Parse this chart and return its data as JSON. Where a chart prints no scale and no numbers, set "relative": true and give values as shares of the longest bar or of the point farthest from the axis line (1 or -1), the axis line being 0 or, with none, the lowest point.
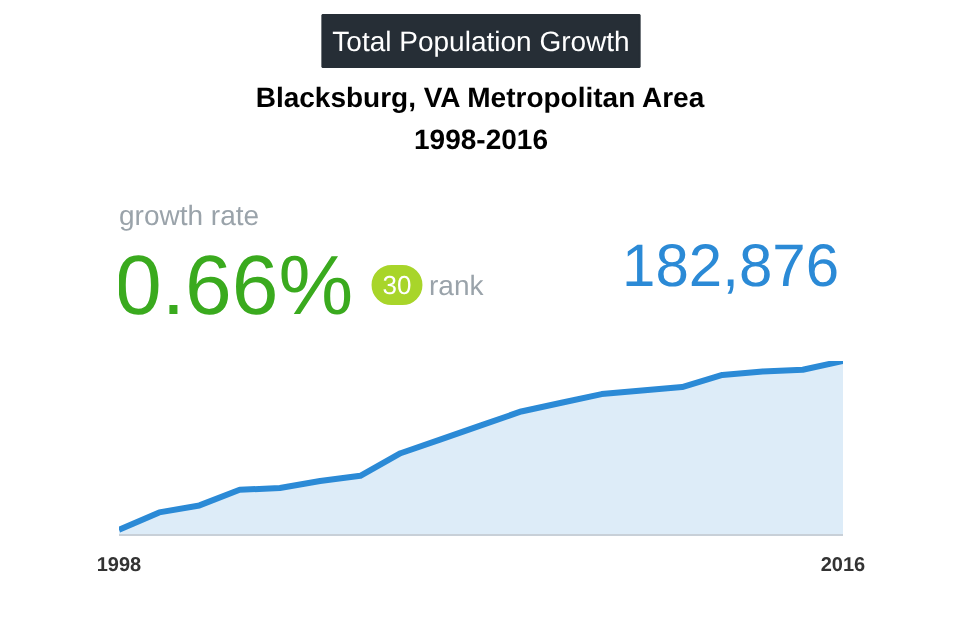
{
  "chart_data": {
    "type": "area",
    "title": "Total Population Growth",
    "subtitle": "Blacksburg, VA Metropolitan Area\n1998-2016",
    "relative": true,
    "color": "#2b8ad6",
    "x": [
      1998,
      1999,
      2000,
      2001,
      2002,
      2003,
      2004,
      2005,
      2006,
      2007,
      2008,
      2009,
      2010,
      2011,
      2012,
      2013,
      2014,
      2015,
      2016
    ],
    "values": [
      0.03,
      0.13,
      0.17,
      0.26,
      0.27,
      0.31,
      0.34,
      0.47,
      0.55,
      0.63,
      0.71,
      0.76,
      0.81,
      0.83,
      0.85,
      0.92,
      0.94,
      0.95,
      1
    ],
    "xlim": [
      1998,
      2016
    ],
    "xticks": [
      1998,
      2016
    ],
    "grid": false,
    "annotations": [
      "growth rate",
      "0.66%",
      "30",
      "rank",
      "182,876"
    ]
  }
}
